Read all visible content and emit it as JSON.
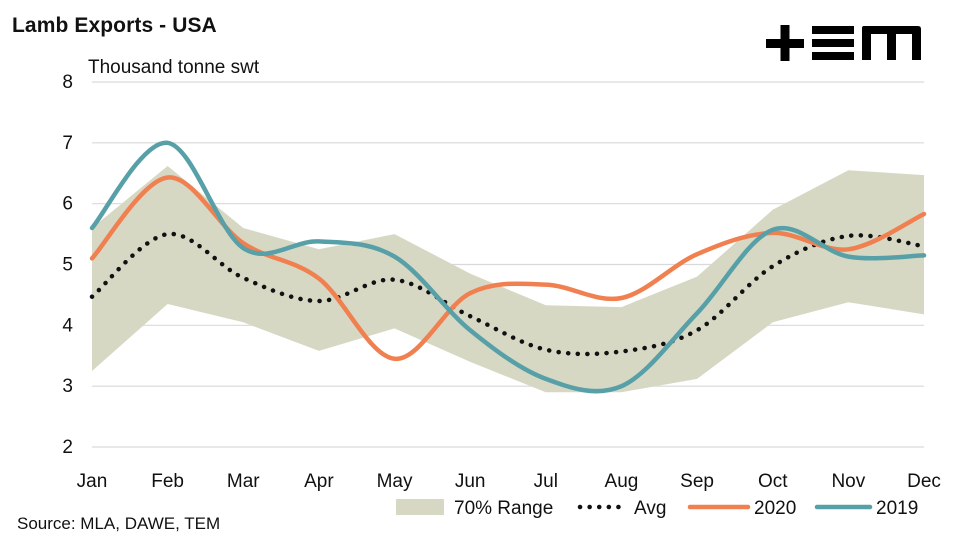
{
  "header": {
    "title": "Lamb Exports - USA",
    "logo_text": "TEM"
  },
  "footer": {
    "source": "Source: MLA, DAWE, TEM"
  },
  "colors": {
    "range_fill": "#d6d8c4",
    "avg": "#111111",
    "series_2020": "#f08050",
    "series_2019": "#58a0a8",
    "grid": "#d9d9d9"
  },
  "chart_data": {
    "type": "line",
    "ylabel": "Thousand tonne swt",
    "ylim": [
      2,
      8
    ],
    "yticks": [
      2,
      3,
      4,
      5,
      6,
      7,
      8
    ],
    "categories": [
      "Jan",
      "Feb",
      "Mar",
      "Apr",
      "May",
      "Jun",
      "Jul",
      "Aug",
      "Sep",
      "Oct",
      "Nov",
      "Dec"
    ],
    "grid": "horizontal",
    "legend_position": "bottom",
    "range": {
      "name": "70% Range",
      "low": [
        3.25,
        4.35,
        4.05,
        3.58,
        3.95,
        3.4,
        2.9,
        2.9,
        3.12,
        4.05,
        4.38,
        4.18
      ],
      "high": [
        5.6,
        6.62,
        5.6,
        5.25,
        5.5,
        4.85,
        4.33,
        4.3,
        4.8,
        5.9,
        6.55,
        6.47
      ]
    },
    "series": [
      {
        "name": "Avg",
        "style": "dotted",
        "values": [
          4.47,
          5.5,
          4.78,
          4.4,
          4.75,
          4.15,
          3.6,
          3.57,
          3.92,
          4.97,
          5.47,
          5.3
        ]
      },
      {
        "name": "2020",
        "style": "solid",
        "values": [
          5.1,
          6.43,
          5.35,
          4.77,
          3.45,
          4.53,
          4.67,
          4.45,
          5.17,
          5.52,
          5.25,
          5.83
        ]
      },
      {
        "name": "2019",
        "style": "solid",
        "values": [
          5.6,
          7.0,
          5.27,
          5.38,
          5.13,
          3.92,
          3.12,
          3.0,
          4.2,
          5.57,
          5.13,
          5.15
        ]
      }
    ]
  }
}
